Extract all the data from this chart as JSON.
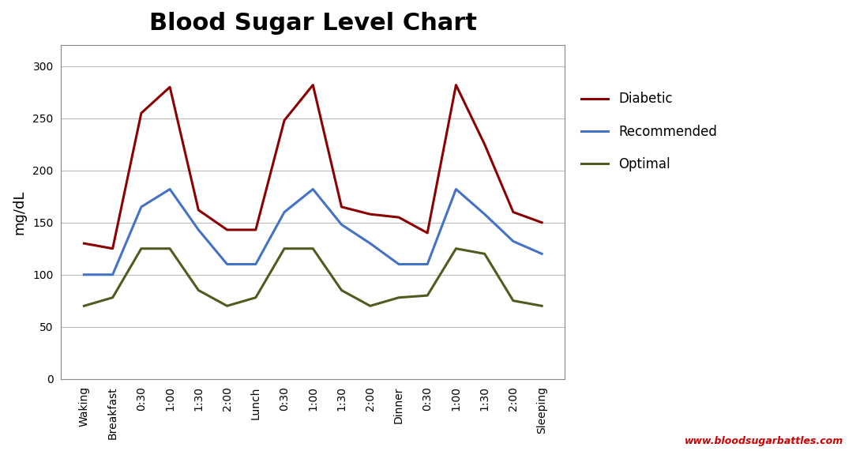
{
  "title": "Blood Sugar Level Chart",
  "title_fontsize": 22,
  "title_fontweight": "bold",
  "ylabel": "mg/dL",
  "ylabel_fontsize": 13,
  "background_color": "#ffffff",
  "plot_bg_color": "#ffffff",
  "x_labels": [
    "Waking",
    "Breakfast",
    "0:30",
    "1:00",
    "1:30",
    "2:00",
    "Lunch",
    "0:30",
    "1:00",
    "1:30",
    "2:00",
    "Dinner",
    "0:30",
    "1:00",
    "1:30",
    "2:00",
    "Sleeping"
  ],
  "diabetic": [
    130,
    125,
    255,
    280,
    162,
    143,
    143,
    248,
    282,
    165,
    158,
    155,
    140,
    282,
    225,
    160,
    150
  ],
  "recommended": [
    100,
    100,
    165,
    182,
    143,
    110,
    110,
    160,
    182,
    148,
    130,
    110,
    110,
    182,
    158,
    132,
    120
  ],
  "optimal": [
    70,
    78,
    125,
    125,
    85,
    70,
    78,
    125,
    125,
    85,
    70,
    78,
    80,
    125,
    120,
    75,
    70
  ],
  "diabetic_color": "#8B0000",
  "recommended_color": "#4472C4",
  "optimal_color": "#4F5B1F",
  "legend_labels": [
    "Diabetic",
    "Recommended",
    "Optimal"
  ],
  "ylim": [
    0,
    320
  ],
  "yticks": [
    0,
    50,
    100,
    150,
    200,
    250,
    300
  ],
  "grid_color": "#BBBBBB",
  "watermark": "www.bloodsugarbattles.com",
  "watermark_color": "#CC0000",
  "line_width": 2.2,
  "border_color": "#888888"
}
